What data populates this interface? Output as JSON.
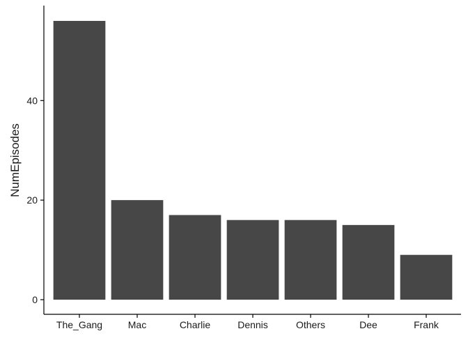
{
  "chart_data": {
    "type": "bar",
    "title": "",
    "xlabel": "",
    "ylabel": "NumEpisodes",
    "categories": [
      "The_Gang",
      "Mac",
      "Charlie",
      "Dennis",
      "Others",
      "Dee",
      "Frank"
    ],
    "values": [
      56,
      20,
      17,
      16,
      16,
      15,
      9
    ],
    "ylim": [
      0,
      58.8
    ],
    "yticks": [
      0,
      20,
      40
    ],
    "grid": false,
    "legend": "none",
    "colors": {
      "bar": "#474747",
      "axis": "#000000",
      "background": "#ffffff"
    }
  }
}
